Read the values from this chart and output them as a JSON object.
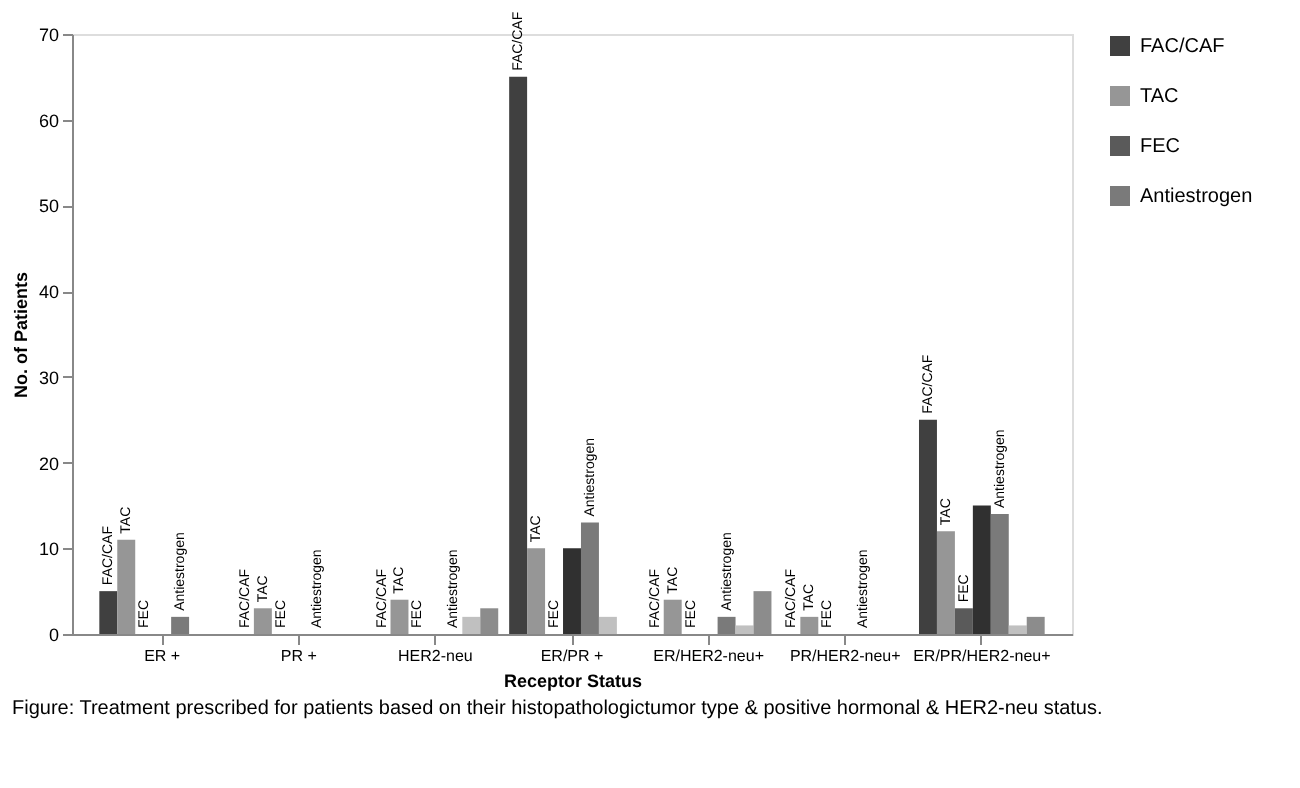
{
  "chart_data": {
    "type": "bar",
    "xlabel": "Receptor Status",
    "ylabel": "No. of Patients",
    "categories": [
      "ER +",
      "PR +",
      "HER2-neu",
      "ER/PR  +",
      "ER/HER2-neu+",
      "PR/HER2-neu+",
      "ER/PR/HER2-neu+"
    ],
    "series": [
      {
        "name": "FAC/CAF",
        "color": "#404040",
        "values": [
          5,
          0,
          0,
          65,
          0,
          0,
          25
        ]
      },
      {
        "name": "TAC",
        "color": "#969696",
        "values": [
          11,
          3,
          4,
          10,
          4,
          2,
          12
        ]
      },
      {
        "name": "FEC",
        "color": "#5a5a5a",
        "values": [
          0,
          0,
          0,
          0,
          0,
          0,
          3
        ]
      },
      {
        "color": "#303030",
        "values": [
          0,
          0,
          0,
          10,
          0,
          0,
          15
        ]
      },
      {
        "name": "Antiestrogen",
        "color": "#7a7a7a",
        "values": [
          2,
          0,
          0,
          13,
          2,
          0,
          14
        ]
      },
      {
        "color": "#c0c0c0",
        "values": [
          0,
          0,
          2,
          2,
          1,
          0,
          1
        ]
      },
      {
        "color": "#8c8c8c",
        "values": [
          0,
          0,
          3,
          0,
          5,
          0,
          2
        ]
      }
    ],
    "ylim": [
      0,
      70
    ],
    "yticks": [
      0,
      10,
      20,
      30,
      40,
      50,
      60,
      70
    ],
    "grid": false,
    "legend": "right",
    "annotations": [
      "Figure: Treatment prescribed for patients based on their histopathologictumor type & positive hormonal & HER2-neu status."
    ]
  }
}
